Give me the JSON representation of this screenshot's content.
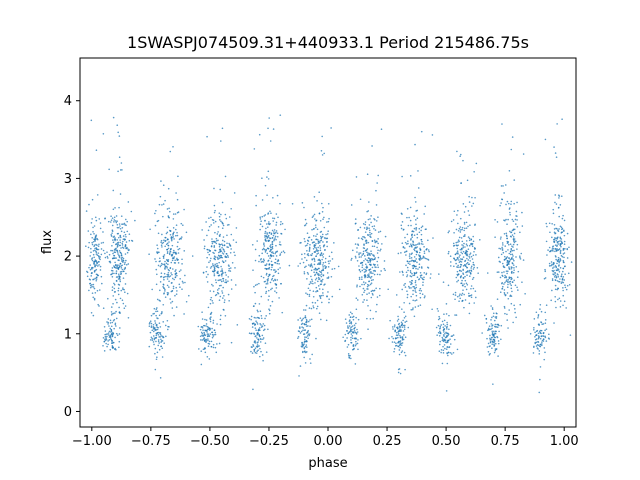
{
  "chart_data": {
    "type": "scatter",
    "title": "1SWASPJ074509.31+440933.1 Period 215486.75s",
    "xlabel": "phase",
    "ylabel": "flux",
    "xlim": [
      -1.05,
      1.05
    ],
    "ylim": [
      -0.2,
      4.55
    ],
    "xticks": [
      -1.0,
      -0.75,
      -0.5,
      -0.25,
      0.0,
      0.25,
      0.5,
      0.75,
      1.0
    ],
    "xtick_labels": [
      "−1.00",
      "−0.75",
      "−0.50",
      "−0.25",
      "0.00",
      "0.25",
      "0.50",
      "0.75",
      "1.00"
    ],
    "yticks": [
      0,
      1,
      2,
      3,
      4
    ],
    "ytick_labels": [
      "0",
      "1",
      "2",
      "3",
      "4"
    ],
    "grid": false,
    "marker_color": "#1f77b4",
    "series": [
      {
        "clusters": [
          {
            "x_center": -0.985,
            "x_width": 0.035,
            "y_center": 1.95,
            "y_spread": 0.28,
            "weight": 0.6
          },
          {
            "x_center": -0.885,
            "x_width": 0.045,
            "y_center": 2.0,
            "y_spread": 0.3,
            "weight": 1.0
          },
          {
            "x_center": -0.67,
            "x_width": 0.06,
            "y_center": 1.95,
            "y_spread": 0.32,
            "weight": 1.0
          },
          {
            "x_center": -0.46,
            "x_width": 0.06,
            "y_center": 1.95,
            "y_spread": 0.32,
            "weight": 1.0
          },
          {
            "x_center": -0.245,
            "x_width": 0.055,
            "y_center": 2.0,
            "y_spread": 0.3,
            "weight": 1.0
          },
          {
            "x_center": -0.04,
            "x_width": 0.065,
            "y_center": 2.0,
            "y_spread": 0.32,
            "weight": 1.1
          },
          {
            "x_center": 0.175,
            "x_width": 0.055,
            "y_center": 1.95,
            "y_spread": 0.3,
            "weight": 1.0
          },
          {
            "x_center": 0.37,
            "x_width": 0.06,
            "y_center": 1.95,
            "y_spread": 0.32,
            "weight": 1.0
          },
          {
            "x_center": 0.575,
            "x_width": 0.055,
            "y_center": 1.95,
            "y_spread": 0.3,
            "weight": 1.0
          },
          {
            "x_center": 0.77,
            "x_width": 0.045,
            "y_center": 1.95,
            "y_spread": 0.32,
            "weight": 0.9
          },
          {
            "x_center": 0.975,
            "x_width": 0.04,
            "y_center": 1.95,
            "y_spread": 0.32,
            "weight": 0.9
          },
          {
            "x_center": -0.92,
            "x_width": 0.03,
            "y_center": 1.0,
            "y_spread": 0.15,
            "weight": 0.35
          },
          {
            "x_center": -0.72,
            "x_width": 0.035,
            "y_center": 1.0,
            "y_spread": 0.15,
            "weight": 0.4
          },
          {
            "x_center": -0.51,
            "x_width": 0.035,
            "y_center": 1.0,
            "y_spread": 0.15,
            "weight": 0.4
          },
          {
            "x_center": -0.3,
            "x_width": 0.035,
            "y_center": 1.0,
            "y_spread": 0.15,
            "weight": 0.4
          },
          {
            "x_center": -0.1,
            "x_width": 0.03,
            "y_center": 1.0,
            "y_spread": 0.15,
            "weight": 0.35
          },
          {
            "x_center": 0.1,
            "x_width": 0.03,
            "y_center": 1.0,
            "y_spread": 0.15,
            "weight": 0.35
          },
          {
            "x_center": 0.305,
            "x_width": 0.035,
            "y_center": 1.0,
            "y_spread": 0.15,
            "weight": 0.4
          },
          {
            "x_center": 0.5,
            "x_width": 0.035,
            "y_center": 1.0,
            "y_spread": 0.15,
            "weight": 0.4
          },
          {
            "x_center": 0.7,
            "x_width": 0.035,
            "y_center": 1.0,
            "y_spread": 0.15,
            "weight": 0.4
          },
          {
            "x_center": 0.9,
            "x_width": 0.03,
            "y_center": 1.0,
            "y_spread": 0.15,
            "weight": 0.35
          }
        ]
      }
    ]
  }
}
